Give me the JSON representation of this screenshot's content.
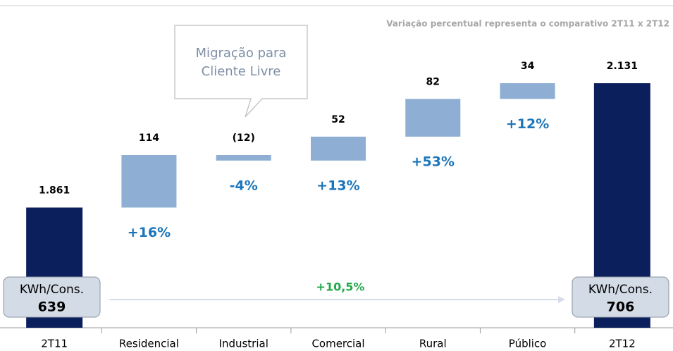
{
  "chart_data": {
    "type": "waterfall",
    "note": "Variação percentual representa o comparativo 2T11 x 2T12",
    "categories": [
      "2T11",
      "Residencial",
      "Industrial",
      "Comercial",
      "Rural",
      "Público",
      "2T12"
    ],
    "values": [
      1861,
      114,
      -12,
      52,
      82,
      34,
      2131
    ],
    "value_labels": [
      "1.861",
      "114",
      "(12)",
      "52",
      "82",
      "34",
      "2.131"
    ],
    "change_labels": [
      null,
      "+16%",
      "-4%",
      "+13%",
      "+53%",
      "+12%",
      null
    ],
    "total_color": "#0b1f5c",
    "delta_color": "#8eaed4",
    "change_color": "#1a75bb",
    "ylim": [
      1600,
      2200
    ],
    "callout": [
      "Migração para",
      "Cliente Livre"
    ],
    "kwh": {
      "label": "KWh/Cons.",
      "start": 639,
      "end": 706,
      "change": "+10,5%",
      "change_color": "#22a84a"
    }
  }
}
